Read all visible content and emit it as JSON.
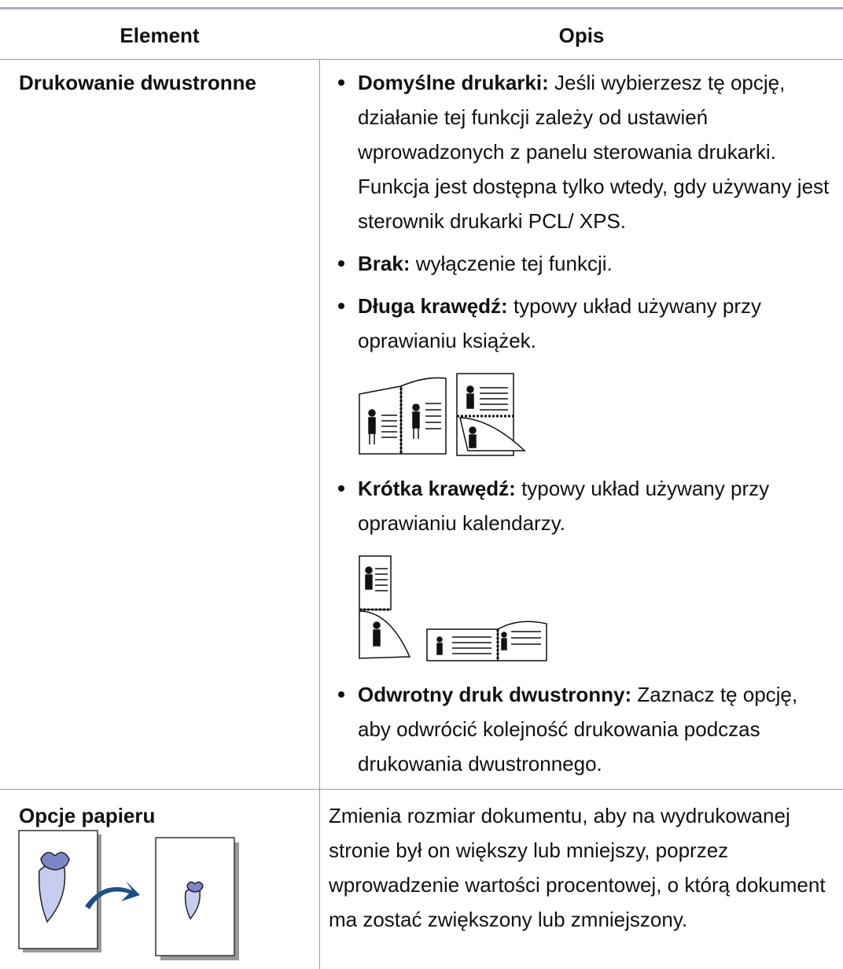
{
  "table": {
    "header": [
      "Element",
      "Opis"
    ],
    "rows": [
      {
        "element": "Drukowanie dwustronne",
        "items": [
          {
            "term": "Domyślne drukarki:",
            "text": "Jeśli wybierzesz tę opcję, działanie tej funkcji zależy od ustawień wprowadzonych z panelu sterowania drukarki. Funkcja jest dostępna tylko wtedy, gdy używany jest sterownik drukarki PCL/ XPS."
          },
          {
            "term": "Brak:",
            "text": "wyłączenie tej funkcji."
          },
          {
            "term": "Długa krawędź:",
            "text": "typowy układ używany przy oprawianiu książek."
          },
          {
            "term": "Krótka krawędź:",
            "text": "typowy układ używany przy oprawianiu kalendarzy."
          },
          {
            "term": "Odwrotny druk dwustronny:",
            "text": "Zaznacz tę opcję, aby odwrócić kolejność drukowania podczas drukowania dwustronnego."
          }
        ]
      },
      {
        "element": "Opcje papieru",
        "description": "Zmienia rozmiar dokumentu, aby na wydrukowanej stronie był on większy lub mniejszy, poprzez wprowadzenie wartości procentowej, o którą dokument ma zostać zwiększony lub zmniejszony."
      }
    ]
  }
}
